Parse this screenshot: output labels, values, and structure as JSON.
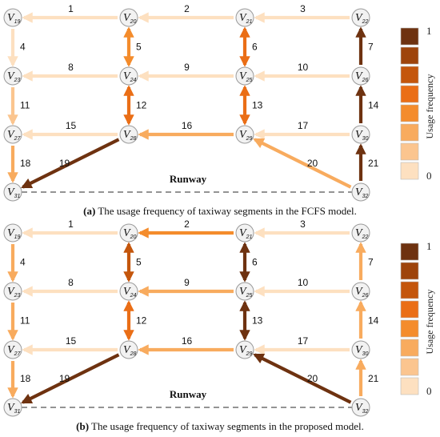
{
  "nodes": [
    {
      "id": "19",
      "label": "V",
      "sub": "19",
      "col": 0,
      "row": 0
    },
    {
      "id": "20",
      "label": "V",
      "sub": "20",
      "col": 1,
      "row": 0
    },
    {
      "id": "21",
      "label": "V",
      "sub": "21",
      "col": 2,
      "row": 0
    },
    {
      "id": "22",
      "label": "V",
      "sub": "22",
      "col": 3,
      "row": 0
    },
    {
      "id": "23",
      "label": "V",
      "sub": "23",
      "col": 0,
      "row": 1
    },
    {
      "id": "24",
      "label": "V",
      "sub": "24",
      "col": 1,
      "row": 1
    },
    {
      "id": "25",
      "label": "V",
      "sub": "25",
      "col": 2,
      "row": 1
    },
    {
      "id": "26",
      "label": "V",
      "sub": "26",
      "col": 3,
      "row": 1
    },
    {
      "id": "27",
      "label": "V",
      "sub": "27",
      "col": 0,
      "row": 2
    },
    {
      "id": "28",
      "label": "V",
      "sub": "28",
      "col": 1,
      "row": 2
    },
    {
      "id": "29",
      "label": "V",
      "sub": "29",
      "col": 2,
      "row": 2
    },
    {
      "id": "30",
      "label": "V",
      "sub": "30",
      "col": 3,
      "row": 2
    },
    {
      "id": "31",
      "label": "V",
      "sub": "31",
      "col": 0,
      "row": 3
    },
    {
      "id": "32",
      "label": "V",
      "sub": "32",
      "col": 3,
      "row": 3
    }
  ],
  "segments": [
    {
      "label": "1",
      "from": "20",
      "to": "19",
      "dir": "to"
    },
    {
      "label": "2",
      "from": "21",
      "to": "20",
      "dir": "to"
    },
    {
      "label": "3",
      "from": "22",
      "to": "21",
      "dir": "to"
    },
    {
      "label": "4",
      "from": "19",
      "to": "23",
      "dir": "to"
    },
    {
      "label": "5",
      "from": "20",
      "to": "24",
      "dir": "both"
    },
    {
      "label": "6",
      "from": "21",
      "to": "25",
      "dir": "both"
    },
    {
      "label": "7",
      "from": "26",
      "to": "22",
      "dir": "to"
    },
    {
      "label": "8",
      "from": "24",
      "to": "23",
      "dir": "to"
    },
    {
      "label": "9",
      "from": "25",
      "to": "24",
      "dir": "to"
    },
    {
      "label": "10",
      "from": "26",
      "to": "25",
      "dir": "to"
    },
    {
      "label": "11",
      "from": "23",
      "to": "27",
      "dir": "to"
    },
    {
      "label": "12",
      "from": "24",
      "to": "28",
      "dir": "both"
    },
    {
      "label": "13",
      "from": "25",
      "to": "29",
      "dir": "both"
    },
    {
      "label": "14",
      "from": "30",
      "to": "26",
      "dir": "to"
    },
    {
      "label": "15",
      "from": "28",
      "to": "27",
      "dir": "to"
    },
    {
      "label": "16",
      "from": "29",
      "to": "28",
      "dir": "to"
    },
    {
      "label": "17",
      "from": "30",
      "to": "29",
      "dir": "to"
    },
    {
      "label": "18",
      "from": "27",
      "to": "31",
      "dir": "to"
    },
    {
      "label": "19",
      "from": "28",
      "to": "31",
      "dir": "to"
    },
    {
      "label": "20",
      "from": "32",
      "to": "29",
      "dir": "to"
    },
    {
      "label": "21",
      "from": "32",
      "to": "30",
      "dir": "to"
    }
  ],
  "panels": [
    {
      "id": "a",
      "caption_tag": "(a)",
      "caption_text": "The usage frequency of taxiway segments in the FCFS model.",
      "runway_label": "Runway",
      "legend": {
        "title": "Usage frequency",
        "max_label": "1",
        "min_label": "0"
      },
      "levels": [
        1,
        1,
        1,
        1,
        4,
        5,
        8,
        1,
        1,
        1,
        2,
        5,
        5,
        8,
        1,
        3,
        1,
        3,
        8,
        3,
        8
      ]
    },
    {
      "id": "b",
      "caption_tag": "(b)",
      "caption_text": "The usage frequency of taxiway segments in the proposed model.",
      "runway_label": "Runway",
      "legend": {
        "title": "Usage frequency",
        "max_label": "1",
        "min_label": "0"
      },
      "levels": [
        1,
        4,
        1,
        3,
        6,
        8,
        3,
        1,
        3,
        1,
        3,
        5,
        8,
        3,
        1,
        3,
        1,
        3,
        8,
        8,
        3
      ]
    }
  ],
  "palette": [
    "#fbe4cc",
    "#fde0c0",
    "#fbc58f",
    "#f8ab5e",
    "#f48c2c",
    "#ea6e16",
    "#c4560c",
    "#9e440b",
    "#6e3210"
  ]
}
